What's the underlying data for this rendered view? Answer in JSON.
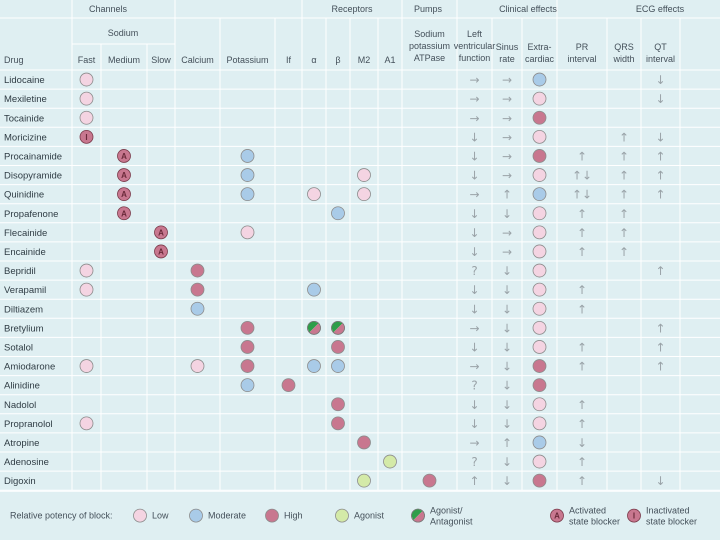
{
  "headers": {
    "groups": [
      {
        "label": "Channels",
        "x": 108
      },
      {
        "label": "Receptors",
        "x": 352
      },
      {
        "label": "Pumps",
        "x": 428
      },
      {
        "label": "Clinical effects",
        "x": 528
      },
      {
        "label": "ECG effects",
        "x": 660
      }
    ],
    "sodium_label": "Sodium",
    "drug_label": "Drug",
    "columns": [
      {
        "key": "fast",
        "lines": [
          "Fast"
        ]
      },
      {
        "key": "medium",
        "lines": [
          "Medium"
        ]
      },
      {
        "key": "slow",
        "lines": [
          "Slow"
        ]
      },
      {
        "key": "calcium",
        "lines": [
          "Calcium"
        ]
      },
      {
        "key": "potassium",
        "lines": [
          "Potassium"
        ]
      },
      {
        "key": "if",
        "lines": [
          "If"
        ]
      },
      {
        "key": "alpha",
        "lines": [
          "α"
        ]
      },
      {
        "key": "beta",
        "lines": [
          "β"
        ]
      },
      {
        "key": "m2",
        "lines": [
          "M2"
        ]
      },
      {
        "key": "a1",
        "lines": [
          "A1"
        ]
      },
      {
        "key": "pump",
        "lines": [
          "Sodium",
          "potassium",
          "ATPase"
        ]
      },
      {
        "key": "lvf",
        "lines": [
          "Left",
          "ventricular",
          "function"
        ]
      },
      {
        "key": "sinus",
        "lines": [
          "Sinus",
          "rate"
        ]
      },
      {
        "key": "extra",
        "lines": [
          "Extra-",
          "cardiac"
        ]
      },
      {
        "key": "pr",
        "lines": [
          "PR",
          "interval"
        ]
      },
      {
        "key": "qrs",
        "lines": [
          "QRS",
          "width"
        ]
      },
      {
        "key": "qt",
        "lines": [
          "QT",
          "interval"
        ]
      }
    ]
  },
  "colors": {
    "low": "#f4d4e2",
    "moderate": "#a9cbe8",
    "high": "#c8778f",
    "agonist": "#d4eaa8",
    "split": "#2e9e4a",
    "background": "#dfeff2",
    "line": "#ffffff"
  },
  "rows": [
    {
      "drug": "Lidocaine",
      "c": {
        "fast": "L",
        "lvf": "→",
        "sinus": "→",
        "extra": "M",
        "qt": "↓"
      }
    },
    {
      "drug": "Mexiletine",
      "c": {
        "fast": "L",
        "lvf": "→",
        "sinus": "→",
        "extra": "L",
        "qt": "↓"
      }
    },
    {
      "drug": "Tocainide",
      "c": {
        "fast": "L",
        "lvf": "→",
        "sinus": "→",
        "extra": "H"
      }
    },
    {
      "drug": "Moricizine",
      "c": {
        "fast": "I",
        "lvf": "↓",
        "sinus": "→",
        "extra": "L",
        "qrs": "↑",
        "qt": "↓"
      }
    },
    {
      "drug": "Procainamide",
      "c": {
        "medium": "A",
        "potassium": "M",
        "lvf": "↓",
        "sinus": "→",
        "extra": "H",
        "pr": "↑",
        "qrs": "↑",
        "qt": "↑"
      }
    },
    {
      "drug": "Disopyramide",
      "c": {
        "medium": "A",
        "potassium": "M",
        "m2": "L",
        "lvf": "↓",
        "sinus": "→",
        "extra": "L",
        "pr": "↑↓",
        "qrs": "↑",
        "qt": "↑"
      }
    },
    {
      "drug": "Quinidine",
      "c": {
        "medium": "A",
        "potassium": "M",
        "alpha": "L",
        "m2": "L",
        "lvf": "→",
        "sinus": "↑",
        "extra": "M",
        "pr": "↑↓",
        "qrs": "↑",
        "qt": "↑"
      }
    },
    {
      "drug": "Propafenone",
      "c": {
        "medium": "A",
        "beta": "M",
        "lvf": "↓",
        "sinus": "↓",
        "extra": "L",
        "pr": "↑",
        "qrs": "↑"
      }
    },
    {
      "drug": "Flecainide",
      "c": {
        "slow": "A",
        "potassium": "L",
        "lvf": "↓",
        "sinus": "→",
        "extra": "L",
        "pr": "↑",
        "qrs": "↑"
      }
    },
    {
      "drug": "Encainide",
      "c": {
        "slow": "A",
        "lvf": "↓",
        "sinus": "→",
        "extra": "L",
        "pr": "↑",
        "qrs": "↑"
      }
    },
    {
      "drug": "Bepridil",
      "c": {
        "fast": "L",
        "calcium": "H",
        "lvf": "?",
        "sinus": "↓",
        "extra": "L",
        "qt": "↑"
      }
    },
    {
      "drug": "Verapamil",
      "c": {
        "fast": "L",
        "calcium": "H",
        "alpha": "M",
        "lvf": "↓",
        "sinus": "↓",
        "extra": "L",
        "pr": "↑"
      }
    },
    {
      "drug": "Diltiazem",
      "c": {
        "calcium": "M",
        "lvf": "↓",
        "sinus": "↓",
        "extra": "L",
        "pr": "↑"
      }
    },
    {
      "drug": "Bretylium",
      "c": {
        "potassium": "H",
        "alpha": "S",
        "beta": "S",
        "lvf": "→",
        "sinus": "↓",
        "extra": "L",
        "qt": "↑"
      }
    },
    {
      "drug": "Sotalol",
      "c": {
        "potassium": "H",
        "beta": "H",
        "lvf": "↓",
        "sinus": "↓",
        "extra": "L",
        "pr": "↑",
        "qt": "↑"
      }
    },
    {
      "drug": "Amiodarone",
      "c": {
        "fast": "L",
        "calcium": "L",
        "potassium": "H",
        "alpha": "M",
        "beta": "M",
        "lvf": "→",
        "sinus": "↓",
        "extra": "H",
        "pr": "↑",
        "qt": "↑"
      }
    },
    {
      "drug": "Alinidine",
      "c": {
        "potassium": "M",
        "if": "H",
        "lvf": "?",
        "sinus": "↓",
        "extra": "H"
      }
    },
    {
      "drug": "Nadolol",
      "c": {
        "beta": "H",
        "lvf": "↓",
        "sinus": "↓",
        "extra": "L",
        "pr": "↑"
      }
    },
    {
      "drug": "Propranolol",
      "c": {
        "fast": "L",
        "beta": "H",
        "lvf": "↓",
        "sinus": "↓",
        "extra": "L",
        "pr": "↑"
      }
    },
    {
      "drug": "Atropine",
      "c": {
        "m2": "H",
        "lvf": "→",
        "sinus": "↑",
        "extra": "M",
        "pr": "↓"
      }
    },
    {
      "drug": "Adenosine",
      "c": {
        "a1": "G",
        "lvf": "?",
        "sinus": "↓",
        "extra": "L",
        "pr": "↑"
      }
    },
    {
      "drug": "Digoxin",
      "c": {
        "m2": "G",
        "pump": "H",
        "lvf": "↑",
        "sinus": "↓",
        "extra": "H",
        "pr": "↑",
        "qt": "↓"
      }
    }
  ],
  "legend": {
    "title": "Relative potency of block:",
    "items": [
      {
        "kind": "L",
        "label": "Low"
      },
      {
        "kind": "M",
        "label": "Moderate"
      },
      {
        "kind": "H",
        "label": "High"
      },
      {
        "kind": "G",
        "label": "Agonist"
      },
      {
        "kind": "S",
        "label": "Agonist/ Antagonist"
      },
      {
        "kind": "A",
        "label": "Activated state blocker"
      },
      {
        "kind": "I",
        "label": "Inactivated state blocker"
      }
    ]
  }
}
